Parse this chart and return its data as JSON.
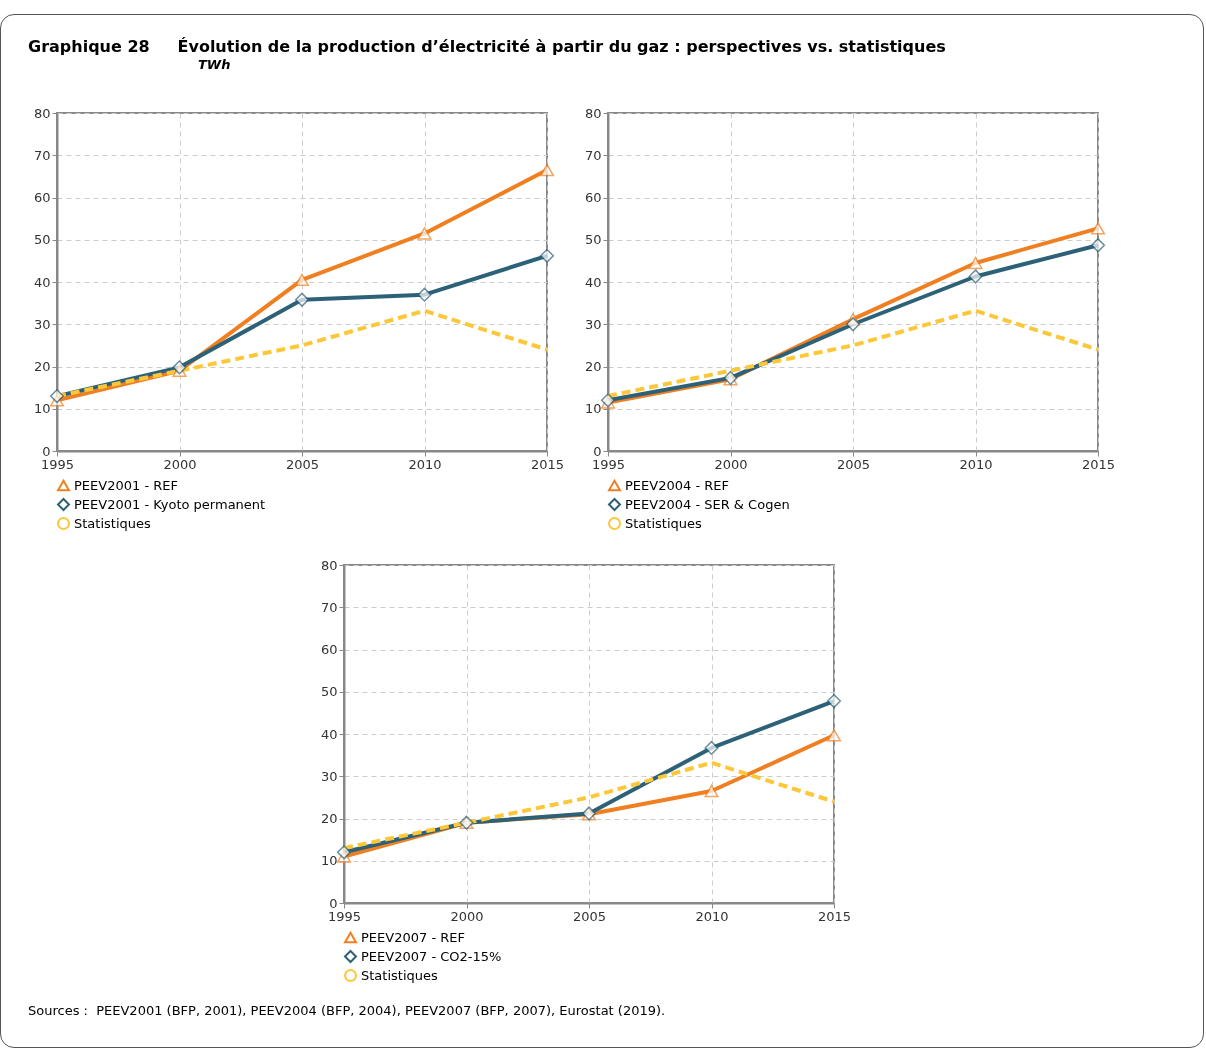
{
  "chart_data": [
    {
      "type": "line",
      "title": "Graphique 28     Évolution de la production d’électricité à partir du gaz : perspectives vs. statistiques",
      "subtitle": "TWh",
      "x": [
        1995,
        2000,
        2005,
        2010,
        2015
      ],
      "xlim": [
        1995,
        2015
      ],
      "xticks": [
        1995,
        2000,
        2005,
        2010,
        2015
      ],
      "ylim": [
        0,
        80
      ],
      "yticks": [
        0,
        10,
        20,
        30,
        40,
        50,
        60,
        70,
        80
      ],
      "grid": true,
      "legend": "bottom",
      "series": [
        {
          "name": "PEEV2001 - REF",
          "color": "#f07f22",
          "marker": "triangle",
          "line_style": "solid",
          "values": [
            12,
            19,
            40.5,
            51.5,
            66.5
          ]
        },
        {
          "name": "PEEV2001 - Kyoto permanent",
          "color": "#2d6177",
          "marker": "diamond",
          "line_style": "solid",
          "values": [
            13,
            19.8,
            35.8,
            37,
            46.2
          ]
        },
        {
          "name": "Statistiques",
          "color": "#fdc73a",
          "marker": "none",
          "line_style": "dashed",
          "values": [
            13,
            19,
            25,
            33.2,
            24
          ]
        }
      ]
    },
    {
      "type": "line",
      "x": [
        1995,
        2000,
        2005,
        2010,
        2015
      ],
      "xlim": [
        1995,
        2015
      ],
      "xticks": [
        1995,
        2000,
        2005,
        2010,
        2015
      ],
      "ylim": [
        0,
        80
      ],
      "yticks": [
        0,
        10,
        20,
        30,
        40,
        50,
        60,
        70,
        80
      ],
      "grid": true,
      "legend": "bottom",
      "series": [
        {
          "name": "PEEV2004 - REF",
          "color": "#f07f22",
          "marker": "triangle",
          "line_style": "solid",
          "values": [
            11.5,
            17,
            31.2,
            44.5,
            52.7
          ]
        },
        {
          "name": "PEEV2004 - SER & Cogen",
          "color": "#2d6177",
          "marker": "diamond",
          "line_style": "solid",
          "values": [
            12,
            17.3,
            30,
            41.3,
            48.7
          ]
        },
        {
          "name": "Statistiques",
          "color": "#fdc73a",
          "marker": "none",
          "line_style": "dashed",
          "values": [
            13,
            19,
            25,
            33.2,
            24
          ]
        }
      ]
    },
    {
      "type": "line",
      "x": [
        1995,
        2000,
        2005,
        2010,
        2015
      ],
      "xlim": [
        1995,
        2015
      ],
      "xticks": [
        1995,
        2000,
        2005,
        2010,
        2015
      ],
      "ylim": [
        0,
        80
      ],
      "yticks": [
        0,
        10,
        20,
        30,
        40,
        50,
        60,
        70,
        80
      ],
      "grid": true,
      "legend": "bottom",
      "annotations": [
        "Sources :  PEEV2001 (BFP, 2001), PEEV2004 (BFP, 2004), PEEV2007 (BFP, 2007), Eurostat (2019)."
      ],
      "series": [
        {
          "name": "PEEV2007 - REF",
          "color": "#f07f22",
          "marker": "triangle",
          "line_style": "solid",
          "values": [
            11,
            19,
            21,
            26.5,
            39.7
          ]
        },
        {
          "name": "PEEV2007 - CO2-15%",
          "color": "#2d6177",
          "marker": "diamond",
          "line_style": "solid",
          "values": [
            12,
            19,
            21.2,
            36.7,
            47.8
          ]
        },
        {
          "name": "Statistiques",
          "color": "#fdc73a",
          "marker": "none",
          "line_style": "dashed",
          "values": [
            13,
            19,
            25,
            33.2,
            24
          ]
        }
      ]
    }
  ]
}
